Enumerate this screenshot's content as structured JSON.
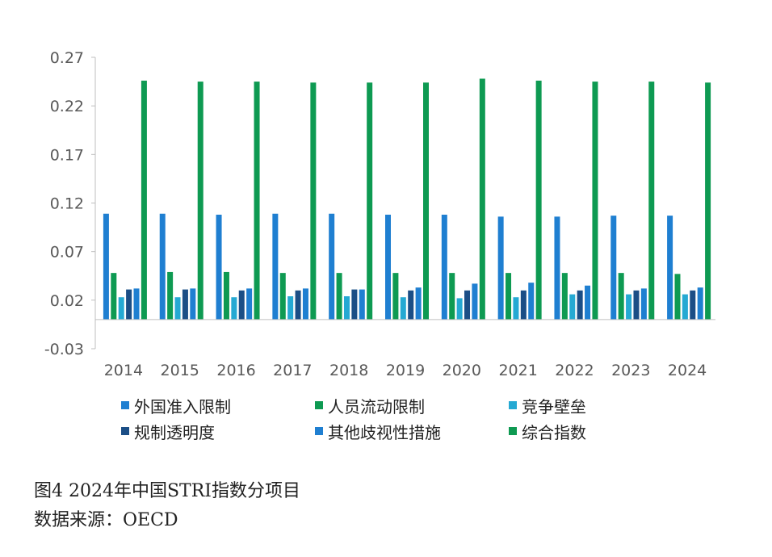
{
  "chart_data": {
    "type": "bar",
    "categories": [
      "2014",
      "2015",
      "2016",
      "2017",
      "2018",
      "2019",
      "2020",
      "2021",
      "2022",
      "2023",
      "2024"
    ],
    "ylim": [
      -0.03,
      0.27
    ],
    "yticks": [
      "0.27",
      "0.22",
      "0.17",
      "0.12",
      "0.07",
      "0.02",
      "-0.03"
    ],
    "ytick_values": [
      0.27,
      0.22,
      0.17,
      0.12,
      0.07,
      0.02,
      -0.03
    ],
    "grid": false,
    "legend_position": "bottom",
    "series": [
      {
        "name": "外国准入限制",
        "color": "#1F7FD1",
        "values": [
          0.109,
          0.109,
          0.108,
          0.109,
          0.109,
          0.108,
          0.108,
          0.106,
          0.106,
          0.107,
          0.107
        ]
      },
      {
        "name": "人员流动限制",
        "color": "#0E9A52",
        "values": [
          0.048,
          0.049,
          0.049,
          0.048,
          0.048,
          0.048,
          0.048,
          0.048,
          0.048,
          0.048,
          0.047
        ]
      },
      {
        "name": "竞争壁垒",
        "color": "#25A9D3",
        "values": [
          0.023,
          0.023,
          0.023,
          0.024,
          0.024,
          0.023,
          0.022,
          0.023,
          0.026,
          0.026,
          0.026
        ]
      },
      {
        "name": "规制透明度",
        "color": "#1B4E86",
        "values": [
          0.031,
          0.031,
          0.03,
          0.03,
          0.031,
          0.03,
          0.03,
          0.03,
          0.03,
          0.03,
          0.03
        ]
      },
      {
        "name": "其他歧视性措施",
        "color": "#1F7FD1",
        "values": [
          0.032,
          0.032,
          0.032,
          0.032,
          0.031,
          0.033,
          0.037,
          0.038,
          0.035,
          0.032,
          0.033
        ]
      },
      {
        "name": "综合指数",
        "color": "#0E9A52",
        "values": [
          0.246,
          0.245,
          0.245,
          0.244,
          0.244,
          0.244,
          0.248,
          0.246,
          0.245,
          0.245,
          0.244
        ]
      }
    ]
  },
  "figure": {
    "title": "图4  2024年中国STRI指数分项目",
    "source": "数据来源：OECD"
  }
}
